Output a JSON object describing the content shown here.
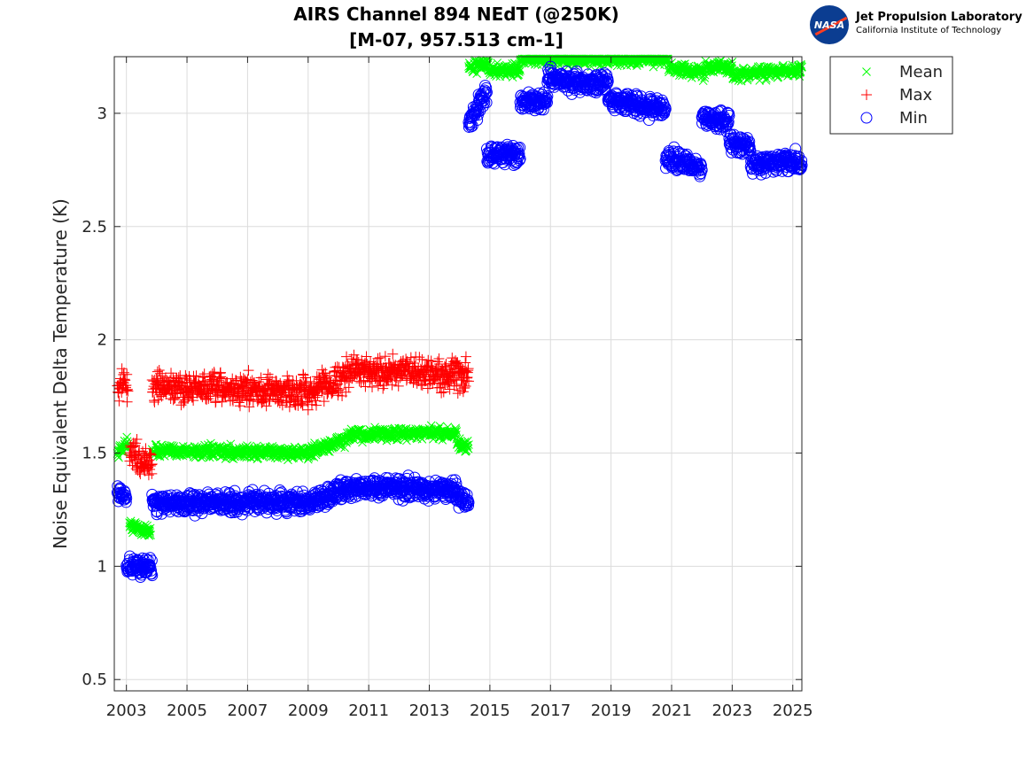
{
  "logo": {
    "badge_text": "NASA",
    "line1": "Jet Propulsion Laboratory",
    "line2": "California Institute of Technology"
  },
  "chart_data": {
    "type": "scatter",
    "title": [
      "AIRS Channel 894 NEdT (@250K)",
      "[M-07, 957.513 cm-1]"
    ],
    "xlabel": "",
    "ylabel": "Noise Equivalent Delta Temperature (K)",
    "xlim": [
      2002.6,
      2025.3
    ],
    "ylim": [
      0.45,
      3.25
    ],
    "xticks": [
      2003,
      2005,
      2007,
      2009,
      2011,
      2013,
      2015,
      2017,
      2019,
      2021,
      2023,
      2025
    ],
    "yticks": [
      0.5,
      1,
      1.5,
      2,
      2.5,
      3
    ],
    "grid": true,
    "legend_position": "outside-top-right",
    "series": [
      {
        "name": "Mean",
        "marker": "x",
        "color": "#00ff00",
        "segments": [
          {
            "x": [
              2002.7,
              2003.05
            ],
            "y": [
              1.5,
              1.55
            ]
          },
          {
            "x": [
              2003.1,
              2003.8
            ],
            "y": [
              1.18,
              1.15
            ]
          },
          {
            "x": [
              2003.85,
              2009.0
            ],
            "y": [
              1.51,
              1.5
            ]
          },
          {
            "x": [
              2009.0,
              2010.4
            ],
            "y": [
              1.5,
              1.57
            ]
          },
          {
            "x": [
              2010.4,
              2013.9
            ],
            "y": [
              1.58,
              1.59
            ]
          },
          {
            "x": [
              2013.9,
              2014.3
            ],
            "y": [
              1.54,
              1.53
            ]
          },
          {
            "x": [
              2014.3,
              2014.95
            ],
            "y": [
              3.2,
              3.22
            ]
          },
          {
            "x": [
              2014.95,
              2016.0
            ],
            "y": [
              3.19,
              3.19
            ]
          },
          {
            "x": [
              2016.0,
              2020.9
            ],
            "y": [
              3.24,
              3.24
            ]
          },
          {
            "x": [
              2020.9,
              2022.1
            ],
            "y": [
              3.2,
              3.18
            ]
          },
          {
            "x": [
              2022.1,
              2023.0
            ],
            "y": [
              3.21,
              3.2
            ]
          },
          {
            "x": [
              2023.0,
              2025.3
            ],
            "y": [
              3.17,
              3.19
            ]
          }
        ]
      },
      {
        "name": "Max",
        "marker": "+",
        "color": "#ff0000",
        "segments": [
          {
            "x": [
              2002.7,
              2003.05
            ],
            "y": [
              1.8,
              1.82
            ]
          },
          {
            "x": [
              2003.1,
              2003.85
            ],
            "y": [
              1.5,
              1.45
            ]
          },
          {
            "x": [
              2003.85,
              2009.0
            ],
            "y": [
              1.79,
              1.77
            ]
          },
          {
            "x": [
              2009.0,
              2010.4
            ],
            "y": [
              1.77,
              1.85
            ]
          },
          {
            "x": [
              2010.4,
              2014.3
            ],
            "y": [
              1.87,
              1.84
            ]
          }
        ]
      },
      {
        "name": "Min",
        "marker": "o",
        "color": "#0000ff",
        "segments": [
          {
            "x": [
              2002.7,
              2003.0
            ],
            "y": [
              1.32,
              1.3
            ]
          },
          {
            "x": [
              2003.0,
              2003.85
            ],
            "y": [
              1.0,
              1.0
            ]
          },
          {
            "x": [
              2003.85,
              2009.0
            ],
            "y": [
              1.28,
              1.28
            ]
          },
          {
            "x": [
              2009.0,
              2010.4
            ],
            "y": [
              1.28,
              1.35
            ]
          },
          {
            "x": [
              2010.4,
              2013.9
            ],
            "y": [
              1.35,
              1.34
            ]
          },
          {
            "x": [
              2013.9,
              2014.3
            ],
            "y": [
              1.3,
              1.28
            ]
          },
          {
            "x": [
              2014.3,
              2014.9
            ],
            "y": [
              2.95,
              3.1
            ]
          },
          {
            "x": [
              2014.9,
              2016.0
            ],
            "y": [
              2.82,
              2.82
            ]
          },
          {
            "x": [
              2016.0,
              2016.9
            ],
            "y": [
              3.05,
              3.05
            ]
          },
          {
            "x": [
              2016.9,
              2018.9
            ],
            "y": [
              3.15,
              3.13
            ]
          },
          {
            "x": [
              2018.9,
              2020.8
            ],
            "y": [
              3.06,
              3.02
            ]
          },
          {
            "x": [
              2020.8,
              2022.0
            ],
            "y": [
              2.8,
              2.76
            ]
          },
          {
            "x": [
              2022.0,
              2022.9
            ],
            "y": [
              2.98,
              2.96
            ]
          },
          {
            "x": [
              2022.9,
              2023.6
            ],
            "y": [
              2.88,
              2.85
            ]
          },
          {
            "x": [
              2023.6,
              2025.3
            ],
            "y": [
              2.78,
              2.78
            ]
          }
        ]
      }
    ]
  }
}
